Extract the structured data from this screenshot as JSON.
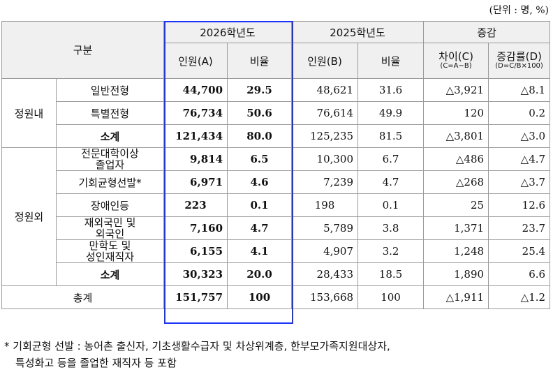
{
  "unit_note": "(단위 : 명, %)",
  "header": {
    "category": "구분",
    "year2026": "2026학년도",
    "year2025": "2025학년도",
    "change": "증감",
    "count_a": "인원(A)",
    "ratio_a": "비율",
    "count_b": "인원(B)",
    "ratio_b": "비율",
    "diff_c": "차이(C)",
    "diff_c_formula": "(C=A−B)",
    "rate_d": "증감률(D)",
    "rate_d_formula": "(D=C/B×100)"
  },
  "groups": {
    "inside": "정원내",
    "outside": "정원외",
    "grand_total": "총계"
  },
  "rows": [
    {
      "label": "일반전형",
      "a": "44,700",
      "ra": "29.5",
      "b": "48,621",
      "rb": "31.6",
      "c": "△3,921",
      "d": "△8.1"
    },
    {
      "label": "특별전형",
      "a": "76,734",
      "ra": "50.6",
      "b": "76,614",
      "rb": "49.9",
      "c": "120",
      "d": "0.2"
    },
    {
      "label": "소계",
      "a": "121,434",
      "ra": "80.0",
      "b": "125,235",
      "rb": "81.5",
      "c": "△3,801",
      "d": "△3.0"
    },
    {
      "label1": "전문대학이상",
      "label2": "졸업자",
      "a": "9,814",
      "ra": "6.5",
      "b": "10,300",
      "rb": "6.7",
      "c": "△486",
      "d": "△4.7"
    },
    {
      "label": "기회균형선발*",
      "a": "6,971",
      "ra": "4.6",
      "b": "7,239",
      "rb": "4.7",
      "c": "△268",
      "d": "△3.7"
    },
    {
      "label": "장애인등",
      "a": "223",
      "ra": "0.1",
      "b": "198",
      "rb": "0.1",
      "c": "25",
      "d": "12.6"
    },
    {
      "label1": "재외국민 및",
      "label2": "외국인",
      "a": "7,160",
      "ra": "4.7",
      "b": "5,789",
      "rb": "3.8",
      "c": "1,371",
      "d": "23.7"
    },
    {
      "label1": "만학도 및",
      "label2": "성인재직자",
      "a": "6,155",
      "ra": "4.1",
      "b": "4,907",
      "rb": "3.2",
      "c": "1,248",
      "d": "25.4"
    },
    {
      "label": "소계",
      "a": "30,323",
      "ra": "20.0",
      "b": "28,433",
      "rb": "18.5",
      "c": "1,890",
      "d": "6.6"
    },
    {
      "a": "151,757",
      "ra": "100",
      "b": "153,668",
      "rb": "100",
      "c": "△1,911",
      "d": "△1.2"
    }
  ],
  "footnote": {
    "line1": "* 기회균형 선발 : 농어촌 출신자, 기초생활수급자 및 차상위계층, 한부모가족지원대상자,",
    "line2": "특성화고 등을 졸업한 재직자 등 포함"
  }
}
